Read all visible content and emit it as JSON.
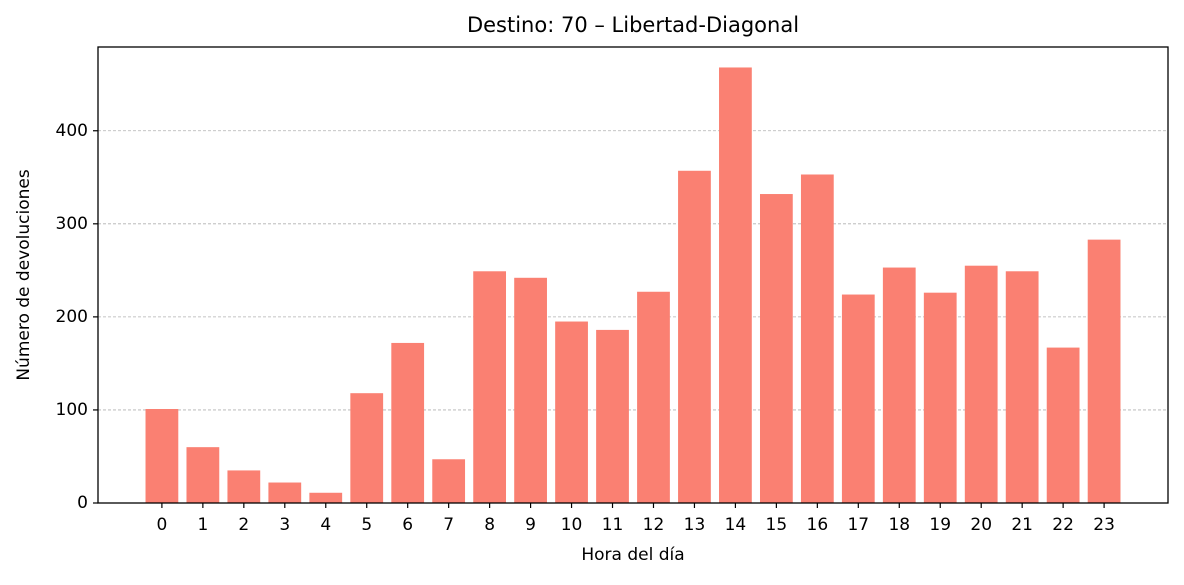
{
  "chart_data": {
    "type": "bar",
    "title": "Destino: 70 – Libertad-Diagonal",
    "x_label": "Hora del día",
    "y_label": "Número de devoluciones",
    "categories": [
      "0",
      "1",
      "2",
      "3",
      "4",
      "5",
      "6",
      "7",
      "8",
      "9",
      "10",
      "11",
      "12",
      "13",
      "14",
      "15",
      "16",
      "17",
      "18",
      "19",
      "20",
      "21",
      "22",
      "23"
    ],
    "values": [
      101,
      60,
      35,
      22,
      11,
      118,
      172,
      47,
      249,
      242,
      195,
      186,
      227,
      357,
      468,
      332,
      353,
      224,
      253,
      226,
      255,
      249,
      167,
      283
    ],
    "color": "#fa8072",
    "ylim": [
      0,
      490
    ],
    "yticks": [
      0,
      100,
      200,
      300,
      400
    ],
    "grid": true
  }
}
